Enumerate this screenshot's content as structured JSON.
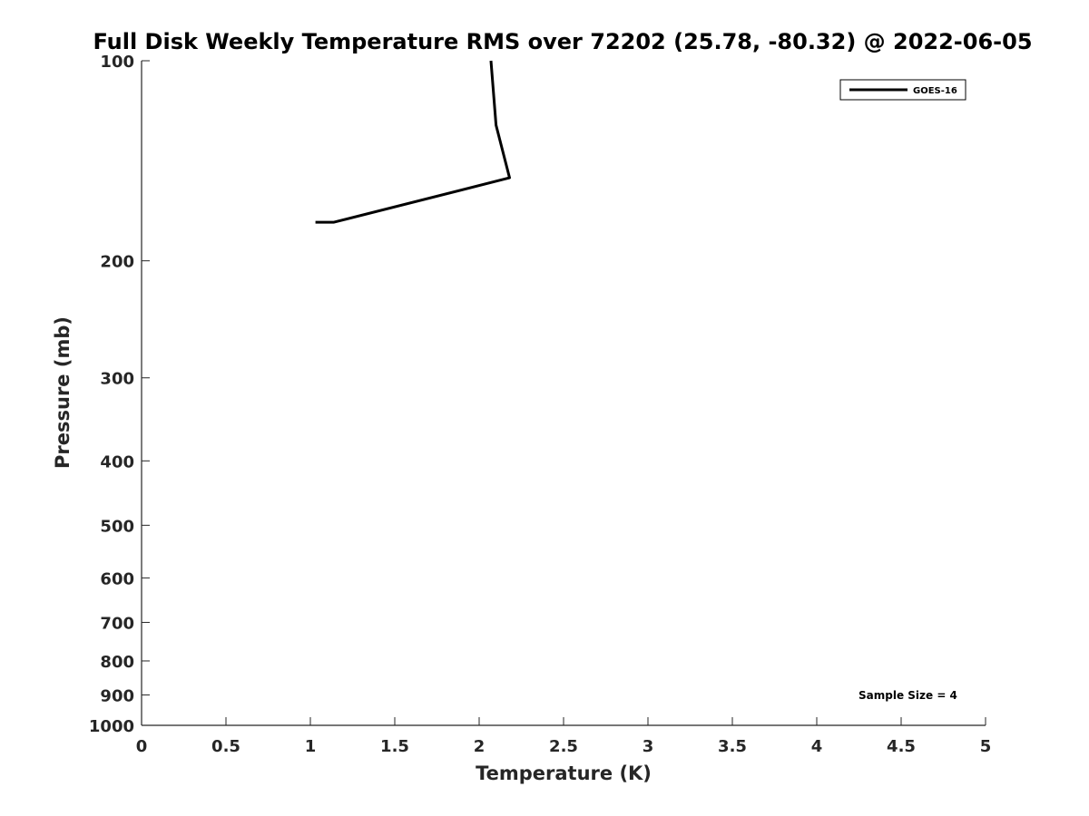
{
  "chart_data": {
    "type": "line",
    "title": "Full Disk Weekly Temperature RMS over 72202 (25.78, -80.32) @ 2022-06-05",
    "xlabel": "Temperature (K)",
    "ylabel": "Pressure (mb)",
    "xlim": [
      0,
      5
    ],
    "ylim": [
      1000,
      100
    ],
    "y_scale": "log",
    "y_reversed": true,
    "xticks": [
      0,
      0.5,
      1,
      1.5,
      2,
      2.5,
      3,
      3.5,
      4,
      4.5,
      5
    ],
    "xtick_labels": [
      "0",
      "0.5",
      "1",
      "1.5",
      "2",
      "2.5",
      "3",
      "3.5",
      "4",
      "4.5",
      "5"
    ],
    "yticks": [
      100,
      200,
      300,
      400,
      500,
      600,
      700,
      800,
      900,
      1000
    ],
    "ytick_labels": [
      "100",
      "200",
      "300",
      "400",
      "500",
      "600",
      "700",
      "800",
      "900",
      "1000"
    ],
    "grid": false,
    "legend_position": "top-right",
    "annotation": "Sample Size = 4",
    "series": [
      {
        "name": "GOES-16",
        "color": "#000000",
        "points": [
          {
            "x": 2.07,
            "p": 100
          },
          {
            "x": 2.1,
            "p": 125
          },
          {
            "x": 2.18,
            "p": 150
          },
          {
            "x": 1.14,
            "p": 175
          },
          {
            "x": 1.03,
            "p": 175
          },
          {
            "x": 1.03,
            "p": 175
          }
        ]
      }
    ]
  }
}
